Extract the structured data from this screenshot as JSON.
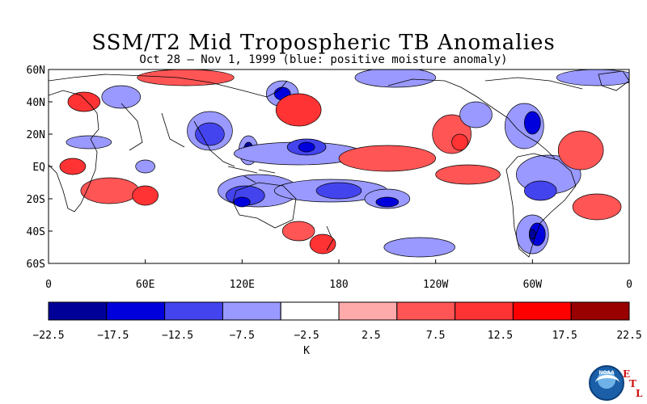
{
  "map": {
    "title": "SSM/T2 Mid Tropospheric TB Anomalies",
    "subtitle": "Oct 28 – Nov 1, 1999 (blue: positive moisture anomaly)",
    "lat_labels": [
      "60N",
      "40N",
      "20N",
      "EQ",
      "20S",
      "40S",
      "60S"
    ],
    "lon_labels": [
      "0",
      "60E",
      "120E",
      "180",
      "120W",
      "60W",
      "0"
    ],
    "lat_range": [
      -60,
      60
    ],
    "lon_range": [
      0,
      360
    ],
    "anomaly_blobs": [
      {
        "lon": 45,
        "lat": 43,
        "rlon": 12,
        "rlat": 7,
        "level": 3
      },
      {
        "lon": 22,
        "lat": 40,
        "rlon": 10,
        "rlat": 6,
        "level": 7
      },
      {
        "lon": 15,
        "lat": 0,
        "rlon": 8,
        "rlat": 5,
        "level": 7
      },
      {
        "lon": 25,
        "lat": 15,
        "rlon": 14,
        "rlat": 4,
        "level": 3
      },
      {
        "lon": 38,
        "lat": -15,
        "rlon": 18,
        "rlat": 8,
        "level": 6
      },
      {
        "lon": 60,
        "lat": -18,
        "rlon": 8,
        "rlat": 6,
        "level": 7
      },
      {
        "lon": 100,
        "lat": 22,
        "rlon": 14,
        "rlat": 12,
        "level": 3
      },
      {
        "lon": 100,
        "lat": 20,
        "rlon": 9,
        "rlat": 7,
        "level": 2
      },
      {
        "lon": 124,
        "lat": 10,
        "rlon": 6,
        "rlat": 9,
        "level": 3
      },
      {
        "lon": 124,
        "lat": 10,
        "rlon": 3,
        "rlat": 5,
        "level": 0
      },
      {
        "lon": 145,
        "lat": 45,
        "rlon": 10,
        "rlat": 8,
        "level": 3
      },
      {
        "lon": 145,
        "lat": 45,
        "rlon": 5,
        "rlat": 4,
        "level": 1
      },
      {
        "lon": 155,
        "lat": 35,
        "rlon": 14,
        "rlat": 10,
        "level": 7
      },
      {
        "lon": 155,
        "lat": 8,
        "rlon": 40,
        "rlat": 7,
        "level": 3
      },
      {
        "lon": 160,
        "lat": 12,
        "rlon": 12,
        "rlat": 5,
        "level": 2
      },
      {
        "lon": 160,
        "lat": 12,
        "rlon": 5,
        "rlat": 3,
        "level": 1
      },
      {
        "lon": 130,
        "lat": -15,
        "rlon": 25,
        "rlat": 10,
        "level": 3
      },
      {
        "lon": 122,
        "lat": -18,
        "rlon": 12,
        "rlat": 6,
        "level": 2
      },
      {
        "lon": 120,
        "lat": -22,
        "rlon": 5,
        "rlat": 3,
        "level": 1
      },
      {
        "lon": 175,
        "lat": -15,
        "rlon": 35,
        "rlat": 7,
        "level": 3
      },
      {
        "lon": 180,
        "lat": -15,
        "rlon": 14,
        "rlat": 5,
        "level": 2
      },
      {
        "lon": 210,
        "lat": -20,
        "rlon": 14,
        "rlat": 6,
        "level": 3
      },
      {
        "lon": 210,
        "lat": -22,
        "rlon": 7,
        "rlat": 3,
        "level": 1
      },
      {
        "lon": 155,
        "lat": -40,
        "rlon": 10,
        "rlat": 6,
        "level": 6
      },
      {
        "lon": 170,
        "lat": -48,
        "rlon": 8,
        "rlat": 6,
        "level": 7
      },
      {
        "lon": 210,
        "lat": 5,
        "rlon": 30,
        "rlat": 8,
        "level": 6
      },
      {
        "lon": 250,
        "lat": 20,
        "rlon": 12,
        "rlat": 12,
        "level": 6
      },
      {
        "lon": 255,
        "lat": 15,
        "rlon": 5,
        "rlat": 5,
        "level": 7
      },
      {
        "lon": 265,
        "lat": 32,
        "rlon": 10,
        "rlat": 8,
        "level": 3
      },
      {
        "lon": 295,
        "lat": 25,
        "rlon": 12,
        "rlat": 14,
        "level": 3
      },
      {
        "lon": 300,
        "lat": 27,
        "rlon": 5,
        "rlat": 7,
        "level": 1
      },
      {
        "lon": 310,
        "lat": -5,
        "rlon": 20,
        "rlat": 12,
        "level": 3
      },
      {
        "lon": 305,
        "lat": -15,
        "rlon": 10,
        "rlat": 6,
        "level": 2
      },
      {
        "lon": 300,
        "lat": -42,
        "rlon": 10,
        "rlat": 12,
        "level": 3
      },
      {
        "lon": 303,
        "lat": -42,
        "rlon": 5,
        "rlat": 7,
        "level": 1
      },
      {
        "lon": 300,
        "lat": -42,
        "rlon": 2,
        "rlat": 3,
        "level": 0
      },
      {
        "lon": 330,
        "lat": 10,
        "rlon": 14,
        "rlat": 12,
        "level": 6
      },
      {
        "lon": 340,
        "lat": -25,
        "rlon": 15,
        "rlat": 8,
        "level": 6
      },
      {
        "lon": 215,
        "lat": 55,
        "rlon": 25,
        "rlat": 6,
        "level": 3
      },
      {
        "lon": 85,
        "lat": 55,
        "rlon": 30,
        "rlat": 5,
        "level": 6
      },
      {
        "lon": 340,
        "lat": 55,
        "rlon": 25,
        "rlat": 5,
        "level": 3
      },
      {
        "lon": 230,
        "lat": -50,
        "rlon": 22,
        "rlat": 6,
        "level": 3
      },
      {
        "lon": 260,
        "lat": -5,
        "rlon": 20,
        "rlat": 6,
        "level": 6
      },
      {
        "lon": 60,
        "lat": 0,
        "rlon": 6,
        "rlat": 4,
        "level": 3
      }
    ]
  },
  "colorbar": {
    "unit": "K",
    "colors": [
      "#000099",
      "#0000dd",
      "#4444ee",
      "#9999ff",
      "#ffffff",
      "#ffaaaa",
      "#ff5555",
      "#ff3333",
      "#ff0000",
      "#990000"
    ],
    "tick_labels": [
      "−22.5",
      "−17.5",
      "−12.5",
      "−7.5",
      "−2.5",
      "2.5",
      "7.5",
      "12.5",
      "17.5",
      "22.5"
    ]
  },
  "logo": {
    "noaa_text": "NOAA",
    "etl_letters": [
      "E",
      "T",
      "L"
    ]
  }
}
